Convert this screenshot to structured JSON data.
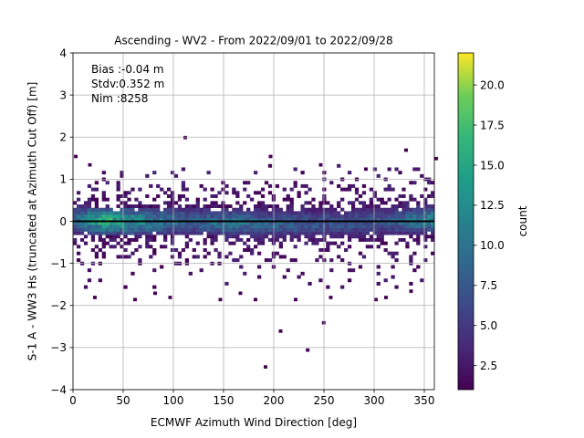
{
  "chart_data": {
    "type": "heatmap",
    "title": "Ascending - WV2 - From 2022/09/01 to 2022/09/28",
    "xlabel": "ECMWF Azimuth Wind Direction [deg]",
    "ylabel": "S-1 A - WW3 Hs (truncated at Azimuth Cut Off) [m]",
    "xlim": [
      0,
      360
    ],
    "ylim": [
      -4,
      4
    ],
    "xticks": [
      "0",
      "50",
      "100",
      "150",
      "200",
      "250",
      "300",
      "350"
    ],
    "yticks": [
      "4",
      "3",
      "2",
      "1",
      "0",
      "−1",
      "−2",
      "−3",
      "−4"
    ],
    "grid": true,
    "zero_line": 0,
    "stats": {
      "bias": "Bias :-0.04 m",
      "stdv": "Stdv:0.352 m",
      "nim": "Nim :8258"
    },
    "colorbar": {
      "label": "count",
      "colormap": "viridis",
      "range": [
        1,
        22
      ],
      "ticks": [
        "2.5",
        "5.0",
        "7.5",
        "10.0",
        "12.5",
        "15.0",
        "17.5",
        "20.0"
      ]
    },
    "density_profile": [
      {
        "x": 0,
        "center": 0.05,
        "peak": 10
      },
      {
        "x": 30,
        "center": 0.0,
        "peak": 17
      },
      {
        "x": 50,
        "center": 0.0,
        "peak": 15
      },
      {
        "x": 80,
        "center": 0.0,
        "peak": 12
      },
      {
        "x": 120,
        "center": 0.0,
        "peak": 9
      },
      {
        "x": 150,
        "center": -0.03,
        "peak": 11
      },
      {
        "x": 200,
        "center": -0.05,
        "peak": 9
      },
      {
        "x": 260,
        "center": -0.05,
        "peak": 8
      },
      {
        "x": 310,
        "center": 0.0,
        "peak": 8
      },
      {
        "x": 360,
        "center": 0.05,
        "peak": 13
      }
    ],
    "outliers": [
      [
        1,
        1.5
      ],
      [
        15,
        1.3
      ],
      [
        110,
        1.95
      ],
      [
        195,
        1.5
      ],
      [
        245,
        1.3
      ],
      [
        330,
        1.65
      ],
      [
        290,
        1.2
      ],
      [
        360,
        1.45
      ],
      [
        20,
        -1.85
      ],
      [
        60,
        -1.9
      ],
      [
        95,
        -1.85
      ],
      [
        145,
        -1.9
      ],
      [
        255,
        -1.85
      ],
      [
        300,
        -1.9
      ],
      [
        310,
        -1.85
      ],
      [
        335,
        -1.7
      ],
      [
        205,
        -2.65
      ],
      [
        248,
        -2.45
      ],
      [
        232,
        -3.1
      ],
      [
        190,
        -3.5
      ],
      [
        165,
        -1.75
      ],
      [
        80,
        -1.75
      ],
      [
        180,
        -1.9
      ],
      [
        220,
        -1.9
      ]
    ]
  }
}
